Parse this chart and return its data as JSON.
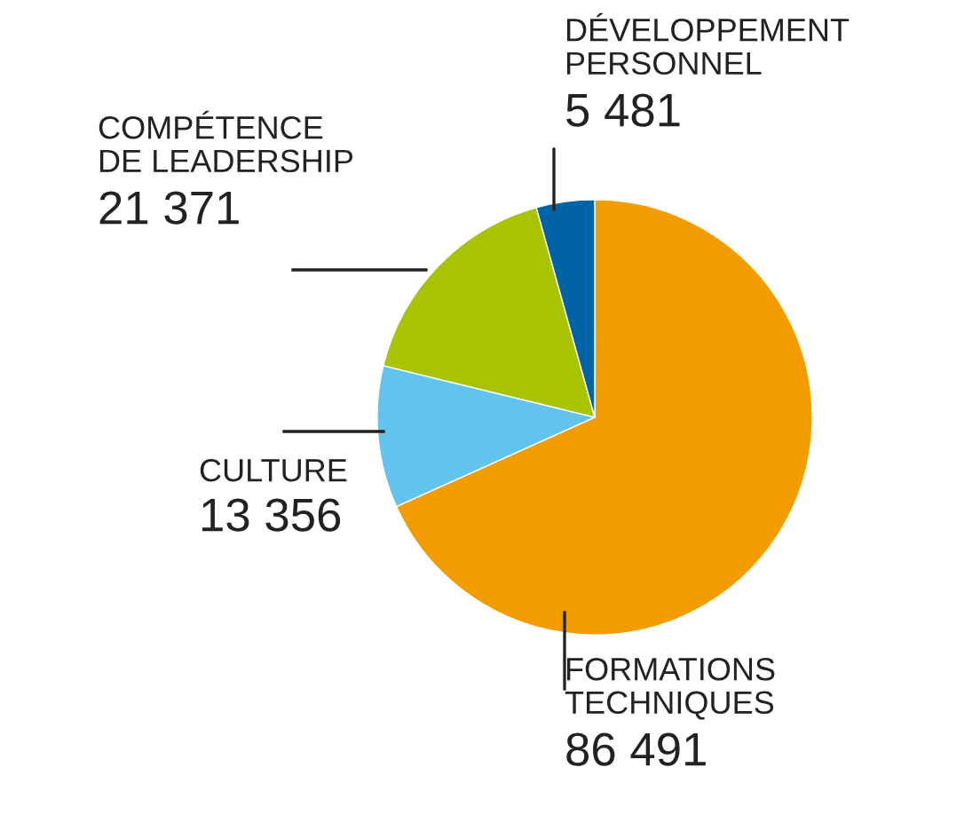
{
  "chart_data": {
    "type": "pie",
    "categories": [
      "FORMATIONS\nTECHNIQUES",
      "CULTURE",
      "COMPÉTENCE\nDE LEADERSHIP",
      "DÉVELOPPEMENT\nPERSONNEL"
    ],
    "values": [
      86491,
      13356,
      21371,
      5481
    ],
    "value_labels": [
      "86 491",
      "13 356",
      "21 371",
      "5 481"
    ],
    "colors": [
      "#f39c00",
      "#62c3ec",
      "#a8c300",
      "#0063a6"
    ]
  }
}
